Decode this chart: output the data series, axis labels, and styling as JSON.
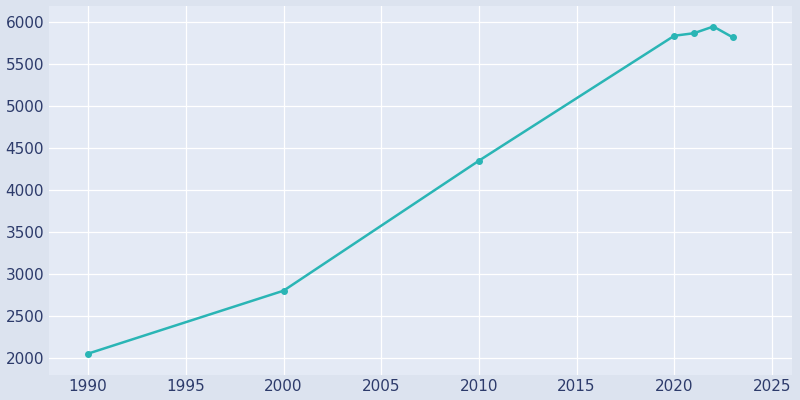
{
  "years": [
    1990,
    2000,
    2010,
    2020,
    2021,
    2022,
    2023
  ],
  "population": [
    2050,
    2800,
    4350,
    5840,
    5870,
    5950,
    5820
  ],
  "line_color": "#2ab5b5",
  "marker_color": "#2ab5b5",
  "fig_bg_color": "#dce3ef",
  "plot_bg_color": "#e4eaf5",
  "grid_color": "#ffffff",
  "xlim": [
    1988,
    2026
  ],
  "ylim": [
    1800,
    6200
  ],
  "yticks": [
    2000,
    2500,
    3000,
    3500,
    4000,
    4500,
    5000,
    5500,
    6000
  ],
  "xticks": [
    1990,
    1995,
    2000,
    2005,
    2010,
    2015,
    2020,
    2025
  ],
  "tick_color": "#2d3b6b",
  "tick_fontsize": 11,
  "linewidth": 1.8,
  "markersize": 4
}
